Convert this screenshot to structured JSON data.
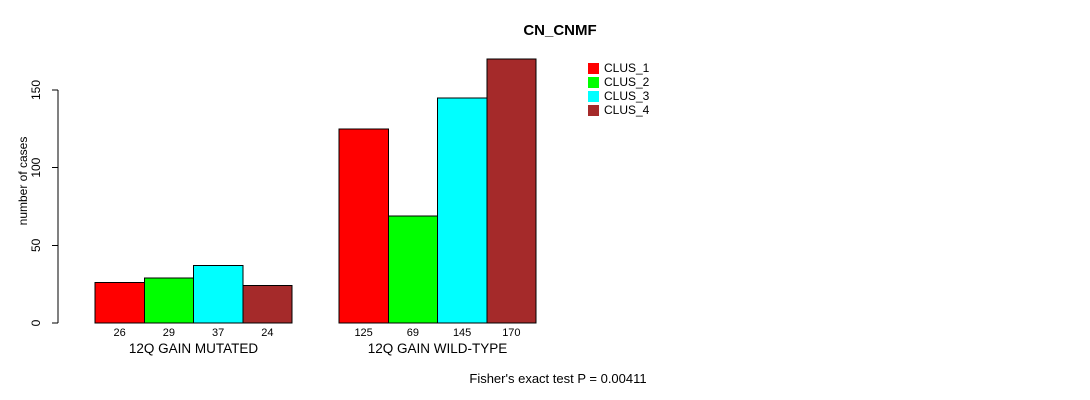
{
  "figure": {
    "title": "CN_CNMF",
    "y_axis_label": "number of cases",
    "footer": "Fisher's exact test P = 0.00411",
    "background_color": "#ffffff",
    "text_color": "#000000"
  },
  "legend": {
    "items": [
      {
        "label": "CLUS_1",
        "color": "#ff0000"
      },
      {
        "label": "CLUS_2",
        "color": "#00ff00"
      },
      {
        "label": "CLUS_3",
        "color": "#00ffff"
      },
      {
        "label": "CLUS_4",
        "color": "#a52a2a"
      }
    ]
  },
  "chart_data": {
    "type": "bar",
    "title": "CN_CNMF",
    "xlabel": "",
    "ylabel": "number of cases",
    "groups": [
      "12Q GAIN MUTATED",
      "12Q GAIN WILD-TYPE"
    ],
    "series": [
      {
        "name": "CLUS_1",
        "color": "#ff0000",
        "values": [
          26,
          125
        ]
      },
      {
        "name": "CLUS_2",
        "color": "#00ff00",
        "values": [
          29,
          69
        ]
      },
      {
        "name": "CLUS_3",
        "color": "#00ffff",
        "values": [
          37,
          145
        ]
      },
      {
        "name": "CLUS_4",
        "color": "#a52a2a",
        "values": [
          24,
          170
        ]
      }
    ],
    "bar_value_labels": [
      [
        26,
        29,
        37,
        24
      ],
      [
        125,
        69,
        145,
        170
      ]
    ],
    "yticks": [
      0,
      50,
      100,
      150
    ],
    "ylim": [
      0,
      150
    ],
    "bar_border_color": "#000000",
    "grid": false,
    "legend_position": "inside-top-right",
    "annotation": "Fisher's exact test P = 0.00411"
  }
}
